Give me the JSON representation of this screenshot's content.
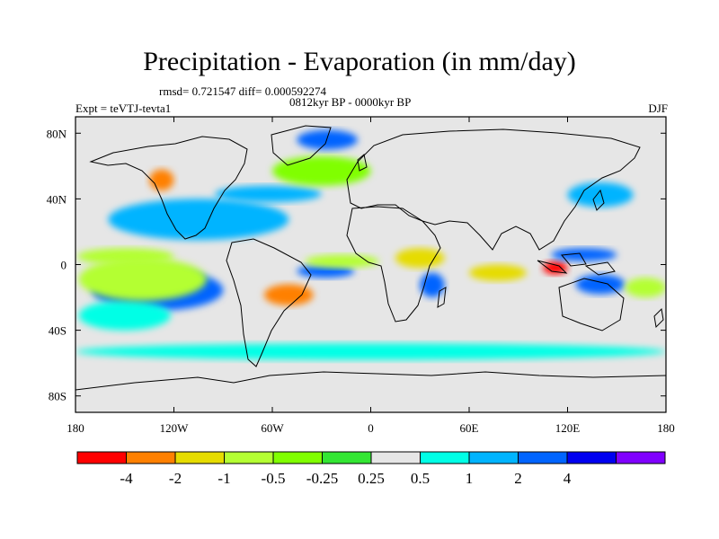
{
  "title": "Precipitation - Evaporation (in mm/day)",
  "stats_line": "rmsd= 0.721547 diff= 0.000592274",
  "period_line": "0812kyr BP - 0000kyr BP",
  "experiment_label": "Expt = teVTJ-tevta1",
  "season_label": "DJF",
  "map": {
    "projection": "cylindrical equidistant",
    "lon_range": [
      -180,
      180
    ],
    "lat_range": [
      -90,
      90
    ],
    "longitude_ticks": [
      "180",
      "120W",
      "60W",
      "0",
      "60E",
      "120E",
      "180"
    ],
    "latitude_ticks": [
      "80N",
      "40N",
      "0",
      "40S",
      "80S"
    ],
    "background_color": "#e6e6e6"
  },
  "colorbar": {
    "colors": [
      "#ff0000",
      "#ff8000",
      "#e6dc00",
      "#b4ff33",
      "#80ff00",
      "#33e633",
      "#e6e6e6",
      "#00ffe6",
      "#00b4ff",
      "#0064ff",
      "#0000f0",
      "#8000ff"
    ],
    "labels": [
      "-4",
      "-2",
      "-1",
      "-0.5",
      "-0.25",
      "0.25",
      "0.5",
      "1",
      "2",
      "4"
    ]
  },
  "chart_data": {
    "type": "heatmap",
    "title": "Precipitation - Evaporation (in mm/day)",
    "units": "mm/day",
    "x_axis": "longitude",
    "y_axis": "latitude",
    "xlim": [
      -180,
      180
    ],
    "ylim": [
      -90,
      90
    ],
    "levels": [
      -4,
      -2,
      -1,
      -0.5,
      -0.25,
      0.25,
      0.5,
      1,
      2,
      4
    ],
    "features": [
      {
        "lon_range": [
          -179,
          -120
        ],
        "lat_range": [
          0,
          10
        ],
        "value": -0.7
      },
      {
        "lon_range": [
          -170,
          -90
        ],
        "lat_range": [
          -28,
          -3
        ],
        "value": 3.0
      },
      {
        "lon_range": [
          -178,
          -122
        ],
        "lat_range": [
          -40,
          -22
        ],
        "value": 0.7
      },
      {
        "lon_range": [
          -178,
          -100
        ],
        "lat_range": [
          -22,
          4
        ],
        "value": -0.7
      },
      {
        "lon_range": [
          -160,
          -50
        ],
        "lat_range": [
          15,
          40
        ],
        "value": 1.5
      },
      {
        "lon_range": [
          -135,
          -120
        ],
        "lat_range": [
          45,
          58
        ],
        "value": -2.5
      },
      {
        "lon_range": [
          -95,
          -30
        ],
        "lat_range": [
          38,
          48
        ],
        "value": 1.5
      },
      {
        "lon_range": [
          -60,
          0
        ],
        "lat_range": [
          48,
          66
        ],
        "value": -0.5
      },
      {
        "lon_range": [
          -45,
          -8
        ],
        "lat_range": [
          70,
          82
        ],
        "value": 2.0
      },
      {
        "lon_range": [
          -65,
          -35
        ],
        "lat_range": [
          -25,
          -12
        ],
        "value": -2.2
      },
      {
        "lon_range": [
          -45,
          -10
        ],
        "lat_range": [
          -8,
          0
        ],
        "value": 2.0
      },
      {
        "lon_range": [
          -40,
          5
        ],
        "lat_range": [
          -2,
          6
        ],
        "value": -0.8
      },
      {
        "lon_range": [
          15,
          45
        ],
        "lat_range": [
          -2,
          10
        ],
        "value": -1.2
      },
      {
        "lon_range": [
          30,
          45
        ],
        "lat_range": [
          -20,
          -5
        ],
        "value": 2.5
      },
      {
        "lon_range": [
          60,
          95
        ],
        "lat_range": [
          -10,
          0
        ],
        "value": -1.5
      },
      {
        "lon_range": [
          105,
          120
        ],
        "lat_range": [
          -6,
          2
        ],
        "value": -5.0
      },
      {
        "lon_range": [
          110,
          150
        ],
        "lat_range": [
          2,
          10
        ],
        "value": 3.0
      },
      {
        "lon_range": [
          125,
          155
        ],
        "lat_range": [
          -18,
          -6
        ],
        "value": 3.0
      },
      {
        "lon_range": [
          155,
          180
        ],
        "lat_range": [
          -20,
          -8
        ],
        "value": -0.8
      },
      {
        "lon_range": [
          120,
          160
        ],
        "lat_range": [
          35,
          50
        ],
        "value": 1.5
      },
      {
        "lon_range": [
          -180,
          180
        ],
        "lat_range": [
          -58,
          -48
        ],
        "value": 0.6
      }
    ]
  }
}
